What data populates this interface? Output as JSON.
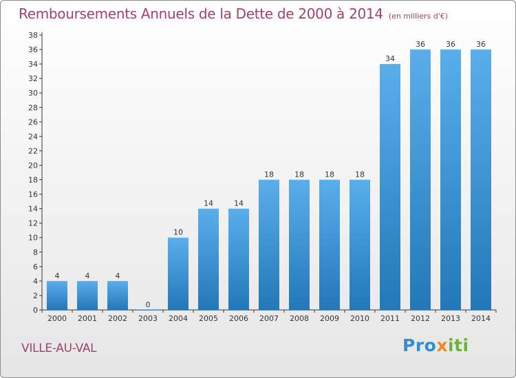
{
  "page": {
    "title": "Remboursements Annuels de la Dette de 2000 à 2014",
    "subtitle": "(en milliers d'€)",
    "place": "VILLE-AU-VAL",
    "logo": {
      "part1": "Pro",
      "part2": "x",
      "part3": "iti"
    }
  },
  "chart_data": {
    "type": "bar",
    "title": "Remboursements Annuels de la Dette de 2000 à 2014",
    "subtitle": "(en milliers d'€)",
    "xlabel": "",
    "ylabel": "",
    "categories": [
      "2000",
      "2001",
      "2002",
      "2003",
      "2004",
      "2005",
      "2006",
      "2007",
      "2008",
      "2009",
      "2010",
      "2011",
      "2012",
      "2013",
      "2014"
    ],
    "values": [
      4,
      4,
      4,
      0,
      10,
      14,
      14,
      18,
      18,
      18,
      18,
      34,
      36,
      36,
      36
    ],
    "ylim": [
      0,
      38
    ],
    "yticks": [
      0,
      2,
      4,
      6,
      8,
      10,
      12,
      14,
      16,
      18,
      20,
      22,
      24,
      26,
      28,
      30,
      32,
      34,
      36,
      38
    ],
    "grid": false,
    "data_labels": true,
    "colors": {
      "bar_top": "#5aaeea",
      "bar_bottom": "#2278b8",
      "axis": "#333333",
      "text": "#333333",
      "title": "#a2416c"
    }
  }
}
